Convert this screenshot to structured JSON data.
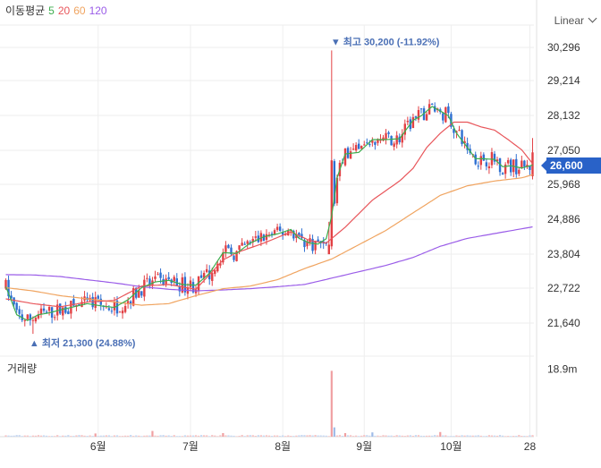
{
  "legend": {
    "label": "이동평균",
    "periods": [
      {
        "value": "5",
        "color": "#3cae4e"
      },
      {
        "value": "20",
        "color": "#e8555a"
      },
      {
        "value": "60",
        "color": "#f0a460"
      },
      {
        "value": "120",
        "color": "#9a5ce8"
      }
    ]
  },
  "scale_button": "Linear",
  "volume_title": "거래량",
  "current_price": "26,600",
  "colors": {
    "up": "#e24044",
    "down": "#2e6fd1",
    "ma5": "#3cae4e",
    "ma20": "#e8555a",
    "ma60": "#f0a460",
    "ma120": "#9a5ce8",
    "grid": "#eeeeee",
    "price_tag": "#2962c8"
  },
  "chart_data": {
    "type": "candlestick",
    "price_axis": {
      "ticks": [
        "30,296",
        "29,214",
        "28,132",
        "27,050",
        "25,968",
        "24,886",
        "23,804",
        "22,722",
        "21,640"
      ],
      "range": [
        21094,
        30617
      ]
    },
    "volume_axis": {
      "ticks": [
        "18.9m"
      ],
      "max": 22
    },
    "x_ticks": [
      "6월",
      "7월",
      "8월",
      "9월",
      "10월",
      "28"
    ],
    "annotations": {
      "high": {
        "label": "▼ 최고 30,200 (-11.92%)",
        "value": 30200
      },
      "low": {
        "label": "▲ 최저 21,300 (24.88%)",
        "value": 21300
      }
    },
    "moving_averages": {
      "ma5": [
        [
          0,
          22780
        ],
        [
          2,
          22350
        ],
        [
          4,
          21900
        ],
        [
          8,
          21720
        ],
        [
          12,
          21900
        ],
        [
          16,
          21960
        ],
        [
          20,
          22050
        ],
        [
          25,
          22150
        ],
        [
          30,
          22250
        ],
        [
          35,
          22180
        ],
        [
          40,
          22130
        ],
        [
          45,
          22370
        ],
        [
          50,
          22750
        ],
        [
          55,
          22930
        ],
        [
          60,
          22980
        ],
        [
          65,
          22850
        ],
        [
          70,
          22830
        ],
        [
          75,
          23200
        ],
        [
          80,
          23850
        ],
        [
          85,
          23830
        ],
        [
          90,
          24150
        ],
        [
          95,
          24350
        ],
        [
          100,
          24440
        ],
        [
          105,
          24580
        ],
        [
          108,
          24300
        ],
        [
          112,
          24150
        ],
        [
          115,
          24120
        ],
        [
          118,
          24290
        ],
        [
          120,
          25000
        ],
        [
          122,
          26200
        ],
        [
          125,
          26950
        ],
        [
          130,
          27000
        ],
        [
          135,
          27400
        ],
        [
          140,
          27400
        ],
        [
          145,
          27430
        ],
        [
          150,
          28010
        ],
        [
          153,
          28150
        ],
        [
          157,
          28440
        ],
        [
          160,
          28300
        ],
        [
          163,
          28150
        ],
        [
          166,
          27600
        ],
        [
          170,
          27150
        ],
        [
          173,
          26800
        ],
        [
          176,
          26800
        ],
        [
          180,
          26780
        ],
        [
          183,
          26550
        ],
        [
          186,
          26580
        ],
        [
          190,
          26510
        ],
        [
          194,
          26600
        ]
      ],
      "ma20": [
        [
          0,
          22400
        ],
        [
          10,
          22250
        ],
        [
          20,
          22150
        ],
        [
          30,
          22300
        ],
        [
          40,
          22350
        ],
        [
          50,
          22800
        ],
        [
          60,
          22850
        ],
        [
          70,
          22700
        ],
        [
          80,
          23620
        ],
        [
          85,
          23850
        ],
        [
          95,
          24150
        ],
        [
          105,
          24500
        ],
        [
          112,
          24230
        ],
        [
          118,
          24150
        ],
        [
          125,
          24650
        ],
        [
          135,
          25500
        ],
        [
          145,
          26100
        ],
        [
          150,
          26500
        ],
        [
          155,
          27150
        ],
        [
          160,
          27600
        ],
        [
          165,
          27950
        ],
        [
          170,
          27950
        ],
        [
          175,
          27800
        ],
        [
          180,
          27700
        ],
        [
          185,
          27400
        ],
        [
          190,
          27080
        ],
        [
          194,
          26650
        ]
      ],
      "ma60": [
        [
          0,
          22750
        ],
        [
          10,
          22650
        ],
        [
          20,
          22500
        ],
        [
          30,
          22400
        ],
        [
          40,
          22300
        ],
        [
          50,
          22200
        ],
        [
          60,
          22250
        ],
        [
          70,
          22500
        ],
        [
          80,
          22720
        ],
        [
          90,
          22800
        ],
        [
          100,
          23000
        ],
        [
          110,
          23350
        ],
        [
          120,
          23650
        ],
        [
          130,
          24100
        ],
        [
          140,
          24550
        ],
        [
          150,
          25100
        ],
        [
          160,
          25650
        ],
        [
          170,
          25950
        ],
        [
          180,
          26100
        ],
        [
          190,
          26200
        ],
        [
          194,
          26300
        ]
      ],
      "ma120": [
        [
          0,
          23160
        ],
        [
          10,
          23150
        ],
        [
          20,
          23100
        ],
        [
          30,
          23000
        ],
        [
          40,
          22900
        ],
        [
          50,
          22780
        ],
        [
          60,
          22700
        ],
        [
          70,
          22650
        ],
        [
          80,
          22680
        ],
        [
          90,
          22720
        ],
        [
          100,
          22780
        ],
        [
          110,
          22850
        ],
        [
          120,
          23050
        ],
        [
          130,
          23250
        ],
        [
          140,
          23450
        ],
        [
          150,
          23700
        ],
        [
          160,
          24050
        ],
        [
          170,
          24300
        ],
        [
          180,
          24450
        ],
        [
          194,
          24660
        ]
      ]
    },
    "volume_spikes": [
      {
        "index": 120,
        "value": 18.4,
        "direction": "up"
      },
      {
        "index": 121,
        "value": 2.6,
        "direction": "down"
      },
      {
        "index": 54,
        "value": 1.6,
        "direction": "up"
      },
      {
        "index": 135,
        "value": 1.2,
        "direction": "down"
      },
      {
        "index": 160,
        "value": 1.3,
        "direction": "up"
      },
      {
        "index": 80,
        "value": 1.0,
        "direction": "up"
      },
      {
        "index": 125,
        "value": 1.0,
        "direction": "up"
      },
      {
        "index": 33,
        "value": 0.9,
        "direction": "up"
      }
    ]
  }
}
